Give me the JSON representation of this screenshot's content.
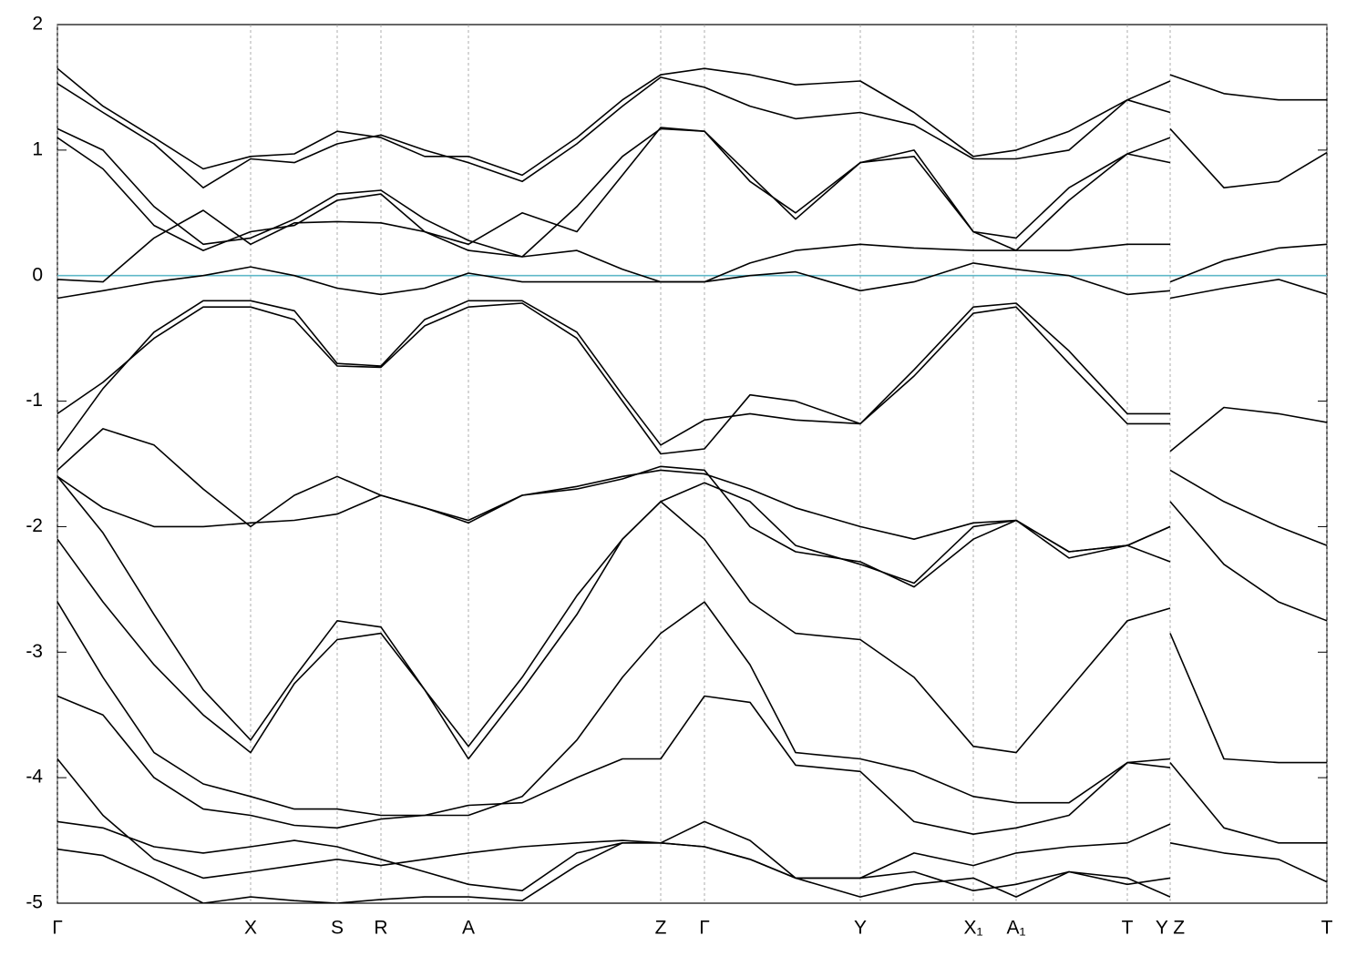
{
  "chart_data": {
    "type": "line",
    "x": [
      0,
      50,
      106,
      160,
      212,
      260,
      307,
      355,
      403,
      451,
      510,
      570,
      620,
      662,
      710,
      760,
      810,
      881,
      940,
      1005,
      1052,
      1110,
      1174,
      1221,
      1221,
      1221,
      1280,
      1340,
      1393
    ],
    "xlim": [
      0,
      1393
    ],
    "xticks": [
      {
        "value": 0,
        "label": "Γ"
      },
      {
        "value": 212,
        "label": "X"
      },
      {
        "value": 307,
        "label": "S"
      },
      {
        "value": 355,
        "label": "R"
      },
      {
        "value": 451,
        "label": "A"
      },
      {
        "value": 662,
        "label": "Z"
      },
      {
        "value": 710,
        "label": "Γ"
      },
      {
        "value": 881,
        "label": "Y"
      },
      {
        "value": 1005,
        "label": "X₁"
      },
      {
        "value": 1052,
        "label": "A₁"
      },
      {
        "value": 1174,
        "label": "T"
      },
      {
        "value": 1221,
        "label": "Y Z"
      },
      {
        "value": 1393,
        "label": "T"
      }
    ],
    "ylim": [
      -5,
      2
    ],
    "yticks": [
      -5,
      -4,
      -3,
      -2,
      -1,
      0,
      1,
      2
    ],
    "vgrid": true,
    "reference_line": {
      "value": 0,
      "color": "#5fb8c8"
    },
    "series": [
      {
        "color": "#000000",
        "values": [
          1.65,
          1.35,
          1.1,
          0.85,
          0.95,
          0.97,
          1.15,
          1.1,
          0.95,
          0.95,
          0.8,
          1.1,
          1.4,
          1.6,
          1.65,
          1.6,
          1.52,
          1.55,
          1.3,
          0.95,
          1.0,
          1.15,
          1.4,
          1.55,
          null,
          1.6,
          1.45,
          1.4,
          1.4
        ]
      },
      {
        "color": "#000000",
        "values": [
          1.53,
          1.3,
          1.05,
          0.7,
          0.93,
          0.9,
          1.05,
          1.12,
          1.0,
          0.9,
          0.75,
          1.05,
          1.35,
          1.58,
          1.5,
          1.35,
          1.25,
          1.3,
          1.2,
          0.93,
          0.93,
          1.0,
          1.4,
          1.3,
          null,
          1.17,
          0.7,
          0.75,
          0.98
        ]
      },
      {
        "color": "#000000",
        "values": [
          1.17,
          1.0,
          0.55,
          0.25,
          0.3,
          0.45,
          0.65,
          0.68,
          0.45,
          0.28,
          0.15,
          0.55,
          0.95,
          1.17,
          1.15,
          0.75,
          0.5,
          0.9,
          1.0,
          0.35,
          0.3,
          0.7,
          0.97,
          1.1,
          null,
          -0.05,
          0.12,
          0.22,
          0.25
        ]
      },
      {
        "color": "#000000",
        "values": [
          1.1,
          0.85,
          0.4,
          0.2,
          0.35,
          0.4,
          0.6,
          0.65,
          0.35,
          0.25,
          0.5,
          0.35,
          0.8,
          1.18,
          1.15,
          0.8,
          0.45,
          0.9,
          0.95,
          0.35,
          0.2,
          0.6,
          0.97,
          0.9,
          null,
          -0.18,
          -0.1,
          -0.03,
          -0.15
        ]
      },
      {
        "color": "#000000",
        "values": [
          -0.03,
          -0.05,
          0.3,
          0.52,
          0.25,
          0.42,
          0.43,
          0.42,
          0.35,
          0.2,
          0.15,
          0.2,
          0.05,
          -0.05,
          -0.05,
          0.1,
          0.2,
          0.25,
          0.22,
          0.2,
          0.2,
          0.2,
          0.25,
          0.25,
          null,
          -1.4,
          -1.05,
          -1.1,
          -1.17
        ]
      },
      {
        "color": "#000000",
        "values": [
          -0.18,
          -0.12,
          -0.05,
          0.0,
          0.07,
          0.0,
          -0.1,
          -0.15,
          -0.1,
          0.02,
          -0.05,
          -0.05,
          -0.05,
          -0.05,
          -0.05,
          0.0,
          0.03,
          -0.12,
          -0.05,
          0.1,
          0.05,
          0.0,
          -0.15,
          -0.12,
          null,
          -1.55,
          -1.8,
          -2.0,
          -2.15
        ]
      },
      {
        "color": "#000000",
        "values": [
          -1.1,
          -0.85,
          -0.5,
          -0.25,
          -0.25,
          -0.35,
          -0.72,
          -0.73,
          -0.4,
          -0.25,
          -0.22,
          -0.5,
          -1.0,
          -1.42,
          -1.38,
          -0.95,
          -1.0,
          -1.18,
          -0.8,
          -0.3,
          -0.25,
          -0.7,
          -1.18,
          -1.18,
          null,
          -1.8,
          -2.3,
          -2.6,
          -2.75
        ]
      },
      {
        "color": "#000000",
        "values": [
          -1.4,
          -0.9,
          -0.45,
          -0.2,
          -0.2,
          -0.28,
          -0.7,
          -0.72,
          -0.35,
          -0.2,
          -0.2,
          -0.45,
          -0.95,
          -1.35,
          -1.15,
          -1.1,
          -1.15,
          -1.18,
          -0.75,
          -0.25,
          -0.22,
          -0.6,
          -1.1,
          -1.1,
          null,
          -2.85,
          -3.85,
          -3.88,
          -3.88
        ]
      },
      {
        "color": "#000000",
        "values": [
          -1.55,
          -1.22,
          -1.35,
          -1.7,
          -2.0,
          -1.75,
          -1.6,
          -1.75,
          -1.85,
          -1.97,
          -1.75,
          -1.68,
          -1.6,
          -1.55,
          -1.58,
          -1.7,
          -1.85,
          -2.0,
          -2.1,
          -1.97,
          -1.95,
          -2.2,
          -2.15,
          -2.0,
          null,
          -3.88,
          -4.4,
          -4.52,
          -4.52
        ]
      },
      {
        "color": "#000000",
        "values": [
          -1.6,
          -1.85,
          -2.0,
          -2.0,
          -1.97,
          -1.95,
          -1.9,
          -1.75,
          -1.85,
          -1.95,
          -1.75,
          -1.7,
          -1.62,
          -1.52,
          -1.55,
          -2.0,
          -2.2,
          -2.28,
          -2.48,
          -2.1,
          -1.95,
          -2.25,
          -2.15,
          -2.28,
          null,
          -4.52,
          -4.6,
          -4.65,
          -4.83
        ]
      },
      {
        "color": "#000000",
        "values": [
          -1.6,
          -2.05,
          -2.7,
          -3.3,
          -3.7,
          -3.2,
          -2.75,
          -2.8,
          -3.3,
          -3.75,
          -3.2,
          -2.55,
          -2.1,
          -1.8,
          -1.65,
          -1.8,
          -2.15,
          -2.3,
          -2.45,
          -2.0,
          -1.95,
          -2.2,
          -2.15,
          -2.0,
          null,
          null,
          null,
          null,
          null
        ]
      },
      {
        "color": "#000000",
        "values": [
          -2.1,
          -2.6,
          -3.1,
          -3.5,
          -3.8,
          -3.25,
          -2.9,
          -2.85,
          -3.3,
          -3.85,
          -3.3,
          -2.7,
          -2.1,
          -1.8,
          -2.1,
          -2.6,
          -2.85,
          -2.9,
          -3.2,
          -3.75,
          -3.8,
          -3.3,
          -2.75,
          -2.65,
          null,
          null,
          null,
          null,
          null
        ]
      },
      {
        "color": "#000000",
        "values": [
          -2.6,
          -3.2,
          -3.8,
          -4.05,
          -4.15,
          -4.25,
          -4.25,
          -4.3,
          -4.3,
          -4.3,
          -4.15,
          -3.7,
          -3.2,
          -2.85,
          -2.6,
          -3.1,
          -3.8,
          -3.85,
          -3.95,
          -4.15,
          -4.2,
          -4.2,
          -3.88,
          -3.85,
          null,
          null,
          null,
          null,
          null
        ]
      },
      {
        "color": "#000000",
        "values": [
          -3.35,
          -3.5,
          -4.0,
          -4.25,
          -4.3,
          -4.38,
          -4.4,
          -4.33,
          -4.3,
          -4.22,
          -4.2,
          -4.0,
          -3.85,
          -3.85,
          -3.35,
          -3.4,
          -3.9,
          -3.95,
          -4.35,
          -4.45,
          -4.4,
          -4.3,
          -3.88,
          -3.92,
          null,
          null,
          null,
          null,
          null
        ]
      },
      {
        "color": "#000000",
        "values": [
          -3.85,
          -4.3,
          -4.65,
          -4.8,
          -4.75,
          -4.7,
          -4.65,
          -4.7,
          -4.65,
          -4.6,
          -4.55,
          -4.52,
          -4.5,
          -4.52,
          -4.35,
          -4.5,
          -4.8,
          -4.8,
          -4.6,
          -4.7,
          -4.6,
          -4.55,
          -4.52,
          -4.37,
          null,
          null,
          null,
          null,
          null
        ]
      },
      {
        "color": "#000000",
        "values": [
          -4.35,
          -4.4,
          -4.55,
          -4.6,
          -4.55,
          -4.5,
          -4.55,
          -4.65,
          -4.75,
          -4.85,
          -4.9,
          -4.6,
          -4.52,
          -4.52,
          -4.55,
          -4.65,
          -4.8,
          -4.95,
          -4.85,
          -4.8,
          -4.95,
          -4.75,
          -4.8,
          -4.95,
          null,
          null,
          null,
          null,
          null
        ]
      },
      {
        "color": "#000000",
        "values": [
          -4.57,
          -4.62,
          -4.8,
          -5.0,
          -4.95,
          -4.98,
          -5.0,
          -4.97,
          -4.95,
          -4.95,
          -4.98,
          -4.7,
          -4.52,
          -4.52,
          -4.55,
          -4.65,
          -4.8,
          -4.8,
          -4.75,
          -4.9,
          -4.85,
          -4.75,
          -4.85,
          -4.8,
          null,
          null,
          null,
          null,
          null
        ]
      }
    ]
  }
}
